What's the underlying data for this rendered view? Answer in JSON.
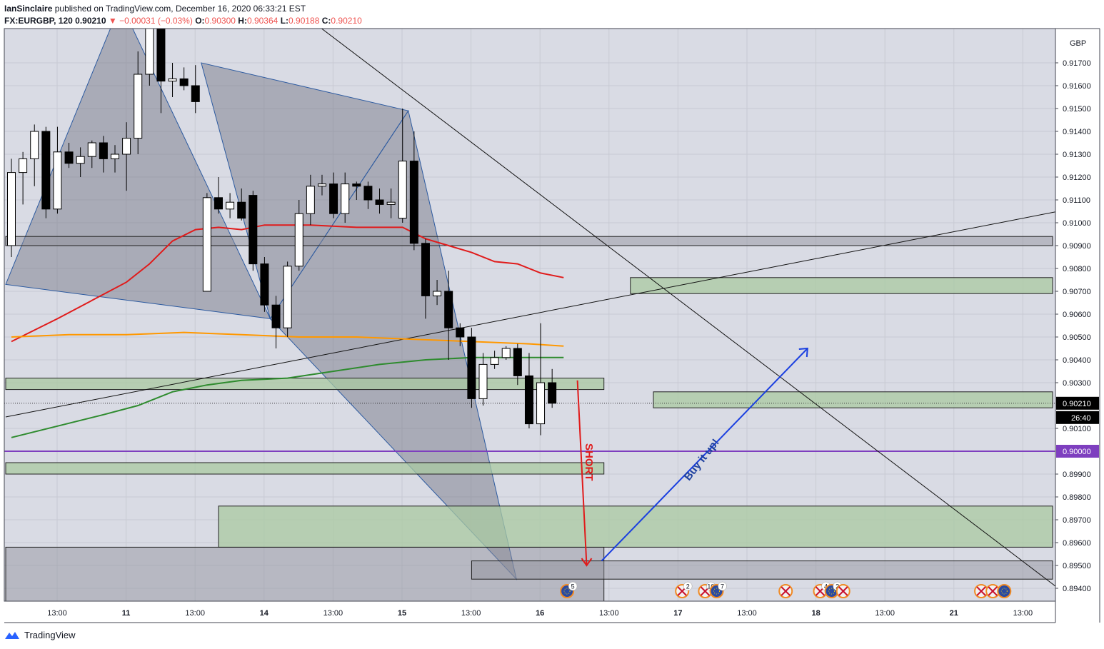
{
  "header": {
    "author": "IanSinclaire",
    "published": "published on TradingView.com, December 16, 2020 06:33:21 EST",
    "symbol": "FX:EURGBP, 120",
    "last": "0.90210",
    "change": "▼ −0.00031 (−0.03%)",
    "o_label": "O:",
    "o": "0.90300",
    "h_label": "H:",
    "h": "0.90364",
    "l_label": "L:",
    "l": "0.90188",
    "c_label": "C:",
    "c": "0.90210"
  },
  "footer": {
    "brand": "TradingView"
  },
  "colors": {
    "bg_plot": "#d9dbe4",
    "up": "#ffffff",
    "down": "#000000",
    "ma_red": "#e01b1b",
    "ma_orange": "#ff9800",
    "ma_green": "#2e8b2e",
    "zone_green": "#a9c9a1",
    "zone_gray": "#8d8f99",
    "purple_line": "#7e3fbf",
    "short_arrow": "#e01b1b",
    "buy_arrow": "#1a3fe0"
  },
  "chart_data": {
    "type": "candlestick",
    "symbol": "FX:EURGBP",
    "interval": "120",
    "currency_label": "GBP",
    "ylim": [
      0.8936,
      0.9188
    ],
    "yticks": [
      "0.91700",
      "0.91600",
      "0.91500",
      "0.91400",
      "0.91300",
      "0.91200",
      "0.91100",
      "0.91000",
      "0.90900",
      "0.90800",
      "0.90700",
      "0.90600",
      "0.90500",
      "0.90400",
      "0.90300",
      "0.90100",
      "0.89900",
      "0.89800",
      "0.89700",
      "0.89600",
      "0.89500",
      "0.89400"
    ],
    "xticks": [
      "13:00",
      "11",
      "13:00",
      "14",
      "13:00",
      "15",
      "13:00",
      "16",
      "13:00",
      "17",
      "13:00",
      "18",
      "13:00",
      "21",
      "13:00"
    ],
    "price_tag": {
      "value": "0.90210",
      "countdown": "26:40"
    },
    "level_tag": "0.90000",
    "candles": [
      {
        "o": 0.909,
        "h": 0.9128,
        "l": 0.9085,
        "c": 0.9122
      },
      {
        "o": 0.9122,
        "h": 0.9131,
        "l": 0.9108,
        "c": 0.9128
      },
      {
        "o": 0.9128,
        "h": 0.9143,
        "l": 0.9116,
        "c": 0.914
      },
      {
        "o": 0.914,
        "h": 0.9142,
        "l": 0.9102,
        "c": 0.9106
      },
      {
        "o": 0.9106,
        "h": 0.9142,
        "l": 0.9104,
        "c": 0.9131
      },
      {
        "o": 0.9131,
        "h": 0.9135,
        "l": 0.9124,
        "c": 0.9126
      },
      {
        "o": 0.9126,
        "h": 0.9133,
        "l": 0.912,
        "c": 0.9129
      },
      {
        "o": 0.9129,
        "h": 0.9136,
        "l": 0.9124,
        "c": 0.9135
      },
      {
        "o": 0.9135,
        "h": 0.9138,
        "l": 0.9122,
        "c": 0.9128
      },
      {
        "o": 0.9128,
        "h": 0.9134,
        "l": 0.9122,
        "c": 0.913
      },
      {
        "o": 0.913,
        "h": 0.9144,
        "l": 0.9114,
        "c": 0.9137
      },
      {
        "o": 0.9137,
        "h": 0.9175,
        "l": 0.913,
        "c": 0.9165
      },
      {
        "o": 0.9165,
        "h": 0.9196,
        "l": 0.916,
        "c": 0.9193
      },
      {
        "o": 0.9193,
        "h": 0.9196,
        "l": 0.9148,
        "c": 0.9162
      },
      {
        "o": 0.9162,
        "h": 0.917,
        "l": 0.9155,
        "c": 0.9163
      },
      {
        "o": 0.9163,
        "h": 0.9168,
        "l": 0.9158,
        "c": 0.916
      },
      {
        "o": 0.916,
        "h": 0.9169,
        "l": 0.9148,
        "c": 0.9153
      },
      {
        "o": 0.907,
        "h": 0.9113,
        "l": 0.907,
        "c": 0.9111
      },
      {
        "o": 0.9111,
        "h": 0.912,
        "l": 0.9104,
        "c": 0.9106
      },
      {
        "o": 0.9106,
        "h": 0.9113,
        "l": 0.9102,
        "c": 0.9109
      },
      {
        "o": 0.9109,
        "h": 0.9115,
        "l": 0.9101,
        "c": 0.9102
      },
      {
        "o": 0.9112,
        "h": 0.9114,
        "l": 0.9079,
        "c": 0.9082
      },
      {
        "o": 0.9082,
        "h": 0.9085,
        "l": 0.9061,
        "c": 0.9064
      },
      {
        "o": 0.9064,
        "h": 0.9068,
        "l": 0.9045,
        "c": 0.9054
      },
      {
        "o": 0.9054,
        "h": 0.9083,
        "l": 0.905,
        "c": 0.9081
      },
      {
        "o": 0.9081,
        "h": 0.911,
        "l": 0.9079,
        "c": 0.9104
      },
      {
        "o": 0.9104,
        "h": 0.9121,
        "l": 0.9099,
        "c": 0.9116
      },
      {
        "o": 0.9116,
        "h": 0.9121,
        "l": 0.9112,
        "c": 0.9117
      },
      {
        "o": 0.9117,
        "h": 0.9122,
        "l": 0.9102,
        "c": 0.9104
      },
      {
        "o": 0.9104,
        "h": 0.9122,
        "l": 0.91,
        "c": 0.9117
      },
      {
        "o": 0.9117,
        "h": 0.9118,
        "l": 0.911,
        "c": 0.9116
      },
      {
        "o": 0.9116,
        "h": 0.9118,
        "l": 0.9106,
        "c": 0.911
      },
      {
        "o": 0.911,
        "h": 0.9115,
        "l": 0.9104,
        "c": 0.9108
      },
      {
        "o": 0.9108,
        "h": 0.9115,
        "l": 0.9102,
        "c": 0.9109
      },
      {
        "o": 0.9102,
        "h": 0.915,
        "l": 0.91,
        "c": 0.9127
      },
      {
        "o": 0.9127,
        "h": 0.914,
        "l": 0.9088,
        "c": 0.9091
      },
      {
        "o": 0.9091,
        "h": 0.9093,
        "l": 0.9058,
        "c": 0.9068
      },
      {
        "o": 0.9068,
        "h": 0.9075,
        "l": 0.9064,
        "c": 0.907
      },
      {
        "o": 0.907,
        "h": 0.9079,
        "l": 0.904,
        "c": 0.9054
      },
      {
        "o": 0.9054,
        "h": 0.9056,
        "l": 0.9046,
        "c": 0.905
      },
      {
        "o": 0.905,
        "h": 0.9054,
        "l": 0.9019,
        "c": 0.9023
      },
      {
        "o": 0.9023,
        "h": 0.9043,
        "l": 0.902,
        "c": 0.9038
      },
      {
        "o": 0.9038,
        "h": 0.9044,
        "l": 0.9036,
        "c": 0.9041
      },
      {
        "o": 0.9041,
        "h": 0.9046,
        "l": 0.904,
        "c": 0.9045
      },
      {
        "o": 0.9045,
        "h": 0.9047,
        "l": 0.9029,
        "c": 0.9033
      },
      {
        "o": 0.9033,
        "h": 0.9043,
        "l": 0.901,
        "c": 0.9012
      },
      {
        "o": 0.9012,
        "h": 0.9056,
        "l": 0.9007,
        "c": 0.903
      },
      {
        "o": 0.903,
        "h": 0.9036,
        "l": 0.9019,
        "c": 0.9021
      }
    ],
    "moving_averages": [
      {
        "color": "red",
        "points": [
          [
            0,
            0.9048
          ],
          [
            2,
            0.9053
          ],
          [
            4,
            0.9058
          ],
          [
            7,
            0.9066
          ],
          [
            10,
            0.9074
          ],
          [
            12,
            0.9082
          ],
          [
            14,
            0.9092
          ],
          [
            16,
            0.9097
          ],
          [
            18,
            0.9098
          ],
          [
            20,
            0.9097
          ],
          [
            22,
            0.9099
          ],
          [
            26,
            0.9099
          ],
          [
            30,
            0.9098
          ],
          [
            34,
            0.9098
          ],
          [
            36,
            0.9093
          ],
          [
            38,
            0.909
          ],
          [
            40,
            0.9087
          ],
          [
            42,
            0.9083
          ],
          [
            44,
            0.9082
          ],
          [
            46,
            0.9078
          ],
          [
            48,
            0.9076
          ]
        ]
      },
      {
        "color": "orange",
        "points": [
          [
            0,
            0.905
          ],
          [
            5,
            0.9051
          ],
          [
            10,
            0.9051
          ],
          [
            15,
            0.9052
          ],
          [
            20,
            0.9051
          ],
          [
            25,
            0.905
          ],
          [
            30,
            0.905
          ],
          [
            35,
            0.9049
          ],
          [
            40,
            0.9048
          ],
          [
            45,
            0.9047
          ],
          [
            48,
            0.9046
          ]
        ]
      },
      {
        "color": "green",
        "points": [
          [
            0,
            0.9006
          ],
          [
            4,
            0.9011
          ],
          [
            8,
            0.9016
          ],
          [
            11,
            0.902
          ],
          [
            14,
            0.9026
          ],
          [
            17,
            0.9029
          ],
          [
            20,
            0.9031
          ],
          [
            24,
            0.9032
          ],
          [
            28,
            0.9035
          ],
          [
            32,
            0.9038
          ],
          [
            36,
            0.904
          ],
          [
            40,
            0.9041
          ],
          [
            44,
            0.9041
          ],
          [
            48,
            0.9041
          ]
        ]
      }
    ],
    "zones_green": [
      {
        "x0": 0,
        "x1": 52,
        "y0": 0.9032,
        "y1": 0.9027
      },
      {
        "x0": 0,
        "x1": 52,
        "y0": 0.8995,
        "y1": 0.899
      },
      {
        "x0": 18.5,
        "x1": 91,
        "y0": 0.8976,
        "y1": 0.8958
      },
      {
        "x0": 54.3,
        "x1": 91,
        "y0": 0.9076,
        "y1": 0.9069
      },
      {
        "x0": 56.3,
        "x1": 91,
        "y0": 0.9026,
        "y1": 0.9019
      }
    ],
    "zones_gray": [
      {
        "x0": 0,
        "x1": 91,
        "y0": 0.9094,
        "y1": 0.909
      },
      {
        "x0": 0,
        "x1": 52,
        "y0": 0.8958,
        "y1": 0.8932
      },
      {
        "x0": 40.5,
        "x1": 91,
        "y0": 0.8952,
        "y1": 0.8944
      }
    ],
    "horizontal_levels": [
      {
        "price": 0.9,
        "color": "purple"
      },
      {
        "price": 0.9021,
        "style": "dotted"
      }
    ],
    "pattern_points": [
      [
        -0.5,
        0.9073
      ],
      [
        9.5,
        0.9196
      ],
      [
        16.5,
        0.917
      ],
      [
        22.5,
        0.9058
      ],
      [
        34.5,
        0.9149
      ],
      [
        43.9,
        0.8944
      ]
    ],
    "trend_lines": [
      {
        "from": [
          -0.5,
          0.9015
        ],
        "to": [
          91,
          0.9105
        ]
      },
      {
        "from": [
          22,
          0.9204
        ],
        "to": [
          91,
          0.894
        ]
      }
    ],
    "arrows": [
      {
        "label": "SHORT",
        "from": [
          49.2,
          0.9031
        ],
        "to": [
          50,
          0.895
        ]
      },
      {
        "label": "Buy it up!",
        "from": [
          51.3,
          0.8952
        ],
        "to": [
          69.2,
          0.9045
        ]
      }
    ],
    "event_badges": [
      {
        "x": 48.3,
        "count": "5",
        "flags": "EU"
      },
      {
        "x": 58.3,
        "count": "2",
        "flags": "UK"
      },
      {
        "x": 60.3,
        "count": "10",
        "flags": "UK"
      },
      {
        "x": 61.3,
        "count": "7",
        "flags": "EU"
      },
      {
        "x": 67.3,
        "count": "",
        "flags": "UK"
      },
      {
        "x": 70.3,
        "count": "4",
        "flags": "UK"
      },
      {
        "x": 71.3,
        "count": "2",
        "flags": "EU"
      },
      {
        "x": 72.3,
        "count": "",
        "flags": "UK"
      },
      {
        "x": 84.3,
        "count": "",
        "flags": "UK"
      },
      {
        "x": 85.3,
        "count": "",
        "flags": "UK"
      },
      {
        "x": 86.3,
        "count": "",
        "flags": "EU"
      }
    ]
  }
}
